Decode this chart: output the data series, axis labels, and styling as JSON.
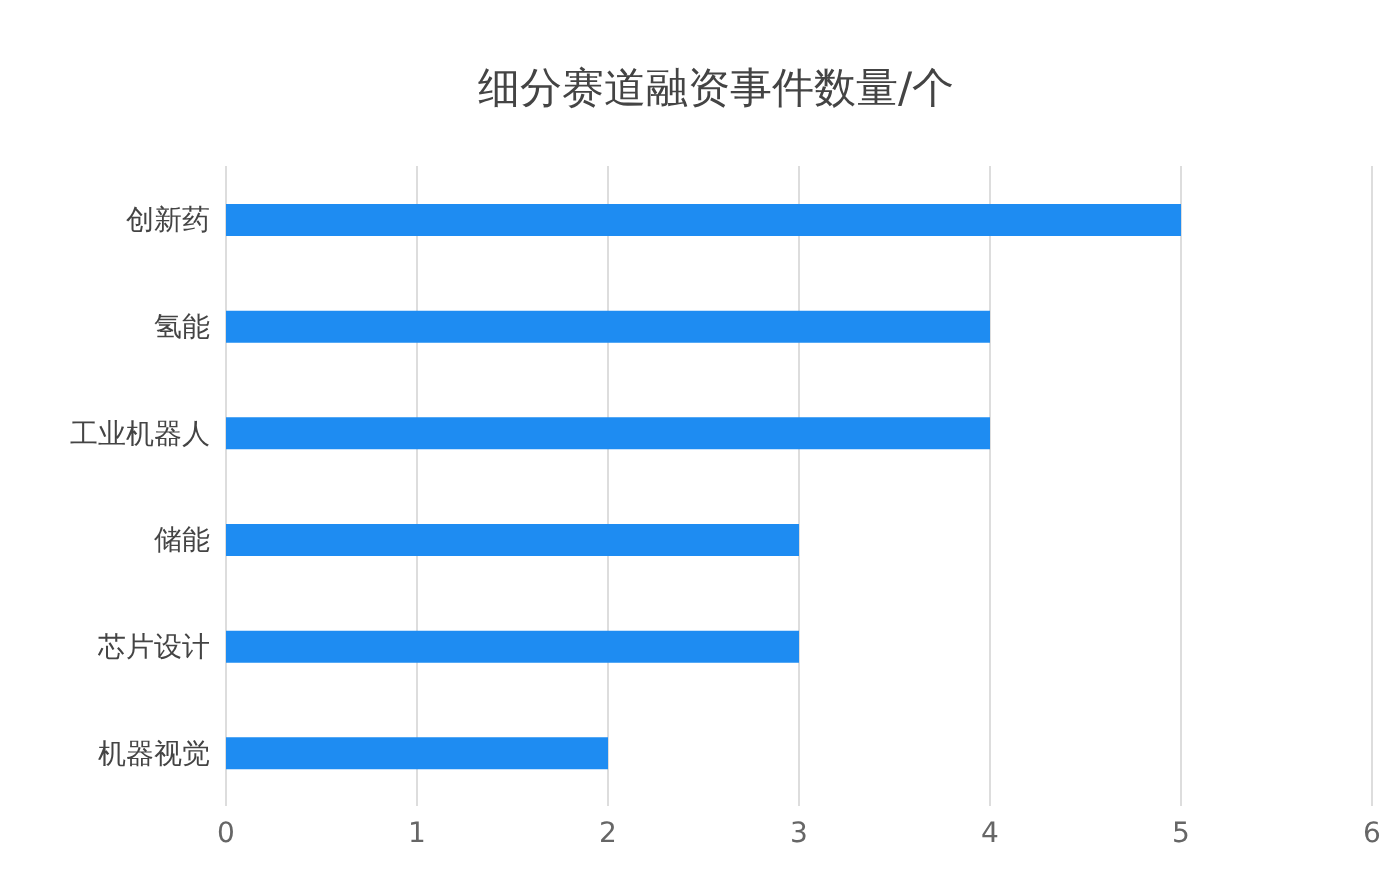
{
  "chart_data": {
    "type": "bar",
    "orientation": "horizontal",
    "title": "细分赛道融资事件数量/个",
    "categories": [
      "创新药",
      "氢能",
      "工业机器人",
      "储能",
      "芯片设计",
      "机器视觉"
    ],
    "values": [
      5,
      4,
      4,
      3,
      3,
      2
    ],
    "color": "#1e8cf2",
    "xlim": [
      0,
      6
    ],
    "xticks": [
      0,
      1,
      2,
      3,
      4,
      5,
      6
    ],
    "grid": "x"
  }
}
